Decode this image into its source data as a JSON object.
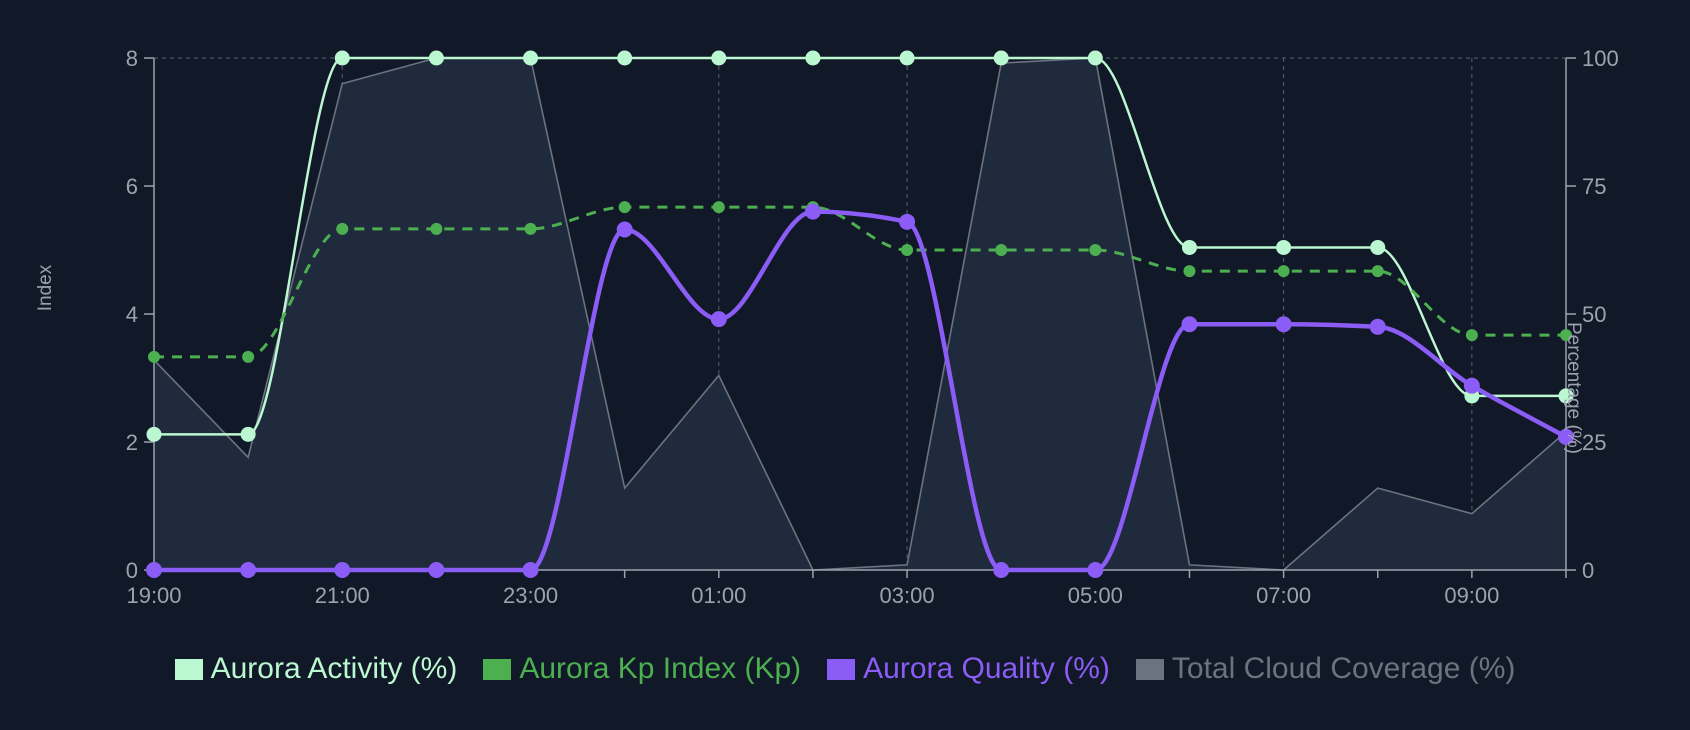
{
  "chart_data": {
    "type": "line",
    "x": [
      "19:00",
      "20:00",
      "21:00",
      "22:00",
      "23:00",
      "00:00",
      "01:00",
      "02:00",
      "03:00",
      "04:00",
      "05:00",
      "06:00",
      "07:00",
      "08:00",
      "09:00",
      "10:00"
    ],
    "x_tick_labels": [
      "19:00",
      "21:00",
      "23:00",
      "01:00",
      "03:00",
      "05:00",
      "07:00",
      "09:00"
    ],
    "y_left": {
      "label": "Index",
      "ylim": [
        0,
        8
      ],
      "ticks": [
        "0",
        "2",
        "4",
        "6",
        "8"
      ]
    },
    "y_right": {
      "label": "Percentage (%)",
      "ylim": [
        0,
        100
      ],
      "ticks": [
        "0",
        "25",
        "50",
        "75",
        "100"
      ]
    },
    "grid": {
      "vertical": true,
      "top_line": true
    },
    "legend_position": "bottom",
    "series": [
      {
        "name": "Aurora Activity (%)",
        "axis": "right",
        "style": "line",
        "color": "#bbf7d0",
        "values": [
          26.5,
          26.5,
          100,
          100,
          100,
          100,
          100,
          100,
          100,
          100,
          100,
          63,
          63,
          63,
          34,
          34
        ]
      },
      {
        "name": "Aurora Kp Index (Kp)",
        "axis": "left",
        "style": "dashed",
        "color": "#4caf50",
        "values": [
          3.33,
          3.33,
          5.33,
          5.33,
          5.33,
          5.67,
          5.67,
          5.67,
          5.0,
          5.0,
          5.0,
          4.67,
          4.67,
          4.67,
          3.67,
          3.67
        ]
      },
      {
        "name": "Aurora Quality (%)",
        "axis": "right",
        "style": "line",
        "color": "#8b5cf6",
        "values": [
          0,
          0,
          0,
          0,
          0,
          66.5,
          49,
          70,
          68,
          0,
          0,
          48,
          48,
          47.5,
          36,
          26
        ]
      },
      {
        "name": "Total Cloud Coverage (%)",
        "axis": "right",
        "style": "area",
        "color": "#6b7280",
        "values": [
          41,
          22,
          95,
          100,
          100,
          16,
          38,
          0,
          1,
          99,
          100,
          1,
          0,
          16,
          11,
          27
        ]
      }
    ]
  }
}
